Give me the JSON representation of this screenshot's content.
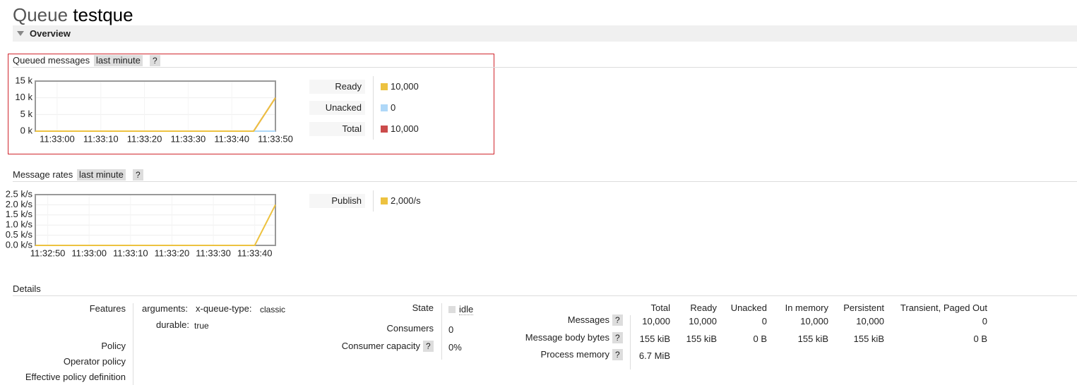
{
  "header": {
    "prefix": "Queue",
    "name": "testque"
  },
  "overview": {
    "title": "Overview"
  },
  "queued": {
    "title": "Queued messages",
    "range": "last minute",
    "help": "?",
    "chart_data": {
      "type": "line",
      "x": [
        -5,
        45,
        50
      ],
      "xlim": [
        -5,
        50
      ],
      "xticks": [
        {
          "value": 0,
          "label": "11:33:00"
        },
        {
          "value": 10,
          "label": "11:33:10"
        },
        {
          "value": 20,
          "label": "11:33:20"
        },
        {
          "value": 30,
          "label": "11:33:30"
        },
        {
          "value": 40,
          "label": "11:33:40"
        },
        {
          "value": 50,
          "label": "11:33:50"
        }
      ],
      "ylim": [
        0,
        15000
      ],
      "yticks": [
        {
          "value": 0,
          "label": "0 k"
        },
        {
          "value": 5000,
          "label": "5 k"
        },
        {
          "value": 10000,
          "label": "10 k"
        },
        {
          "value": 15000,
          "label": "15 k"
        }
      ],
      "series": [
        {
          "name": "Ready",
          "color": "#edc240",
          "values": [
            0,
            0,
            10000
          ],
          "current": "10,000"
        },
        {
          "name": "Unacked",
          "color": "#afd8f8",
          "values": [
            0,
            0,
            0
          ],
          "current": "0"
        },
        {
          "name": "Total",
          "color": "#cb4b4b",
          "values": [
            0,
            0,
            10000
          ],
          "current": "10,000"
        }
      ]
    }
  },
  "rates": {
    "title": "Message rates",
    "range": "last minute",
    "help": "?",
    "chart_data": {
      "type": "line",
      "x": [
        -3,
        50,
        55
      ],
      "xlim": [
        -3,
        55
      ],
      "xticks": [
        {
          "value": 0,
          "label": "11:32:50"
        },
        {
          "value": 10,
          "label": "11:33:00"
        },
        {
          "value": 20,
          "label": "11:33:10"
        },
        {
          "value": 30,
          "label": "11:33:20"
        },
        {
          "value": 40,
          "label": "11:33:30"
        },
        {
          "value": 50,
          "label": "11:33:40"
        }
      ],
      "ylim": [
        0,
        2500
      ],
      "yticks": [
        {
          "value": 0,
          "label": "0.0 k/s"
        },
        {
          "value": 500,
          "label": "0.5 k/s"
        },
        {
          "value": 1000,
          "label": "1.0 k/s"
        },
        {
          "value": 1500,
          "label": "1.5 k/s"
        },
        {
          "value": 2000,
          "label": "2.0 k/s"
        },
        {
          "value": 2500,
          "label": "2.5 k/s"
        }
      ],
      "series": [
        {
          "name": "Publish",
          "color": "#edc240",
          "values": [
            0,
            0,
            2000
          ],
          "current": "2,000/s"
        }
      ]
    }
  },
  "details": {
    "title": "Details",
    "features": {
      "label": "Features",
      "arguments": "arguments:",
      "queue_type_key": "x-queue-type:",
      "queue_type": "classic",
      "durable_key": "durable:",
      "durable": "true"
    },
    "policies": [
      "Policy",
      "Operator policy",
      "Effective policy definition"
    ],
    "state": {
      "label": "State",
      "value": "idle"
    },
    "consumers": {
      "label": "Consumers",
      "value": 0
    },
    "capacity": {
      "label": "Consumer capacity",
      "help": "?",
      "value": "0%"
    },
    "stats": {
      "columns": [
        "Total",
        "Ready",
        "Unacked",
        "In memory",
        "Persistent",
        "Transient, Paged Out"
      ],
      "rows": [
        {
          "label": "Messages",
          "help": "?",
          "cells": [
            "10,000",
            "10,000",
            "0",
            "10,000",
            "10,000",
            "0"
          ]
        },
        {
          "label": "Message body bytes",
          "help": "?",
          "cells": [
            "155 kiB",
            "155 kiB",
            "0 B",
            "155 kiB",
            "155 kiB",
            "0 B"
          ]
        },
        {
          "label": "Process memory",
          "help": "?",
          "cells": [
            "6.7 MiB"
          ]
        }
      ]
    }
  }
}
